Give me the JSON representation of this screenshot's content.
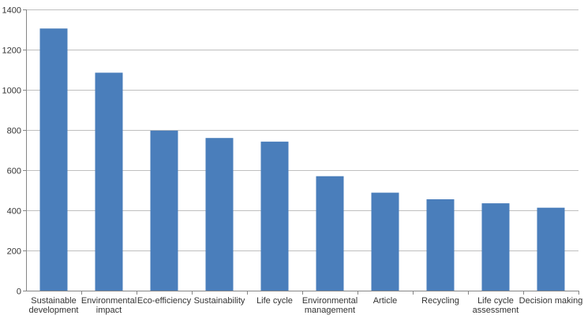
{
  "chart_data": {
    "type": "bar",
    "title": "",
    "xlabel": "",
    "ylabel": "",
    "ylim": [
      0,
      1400
    ],
    "yticks": [
      0,
      200,
      400,
      600,
      800,
      1000,
      1200,
      1400
    ],
    "grid": true,
    "legend": "none",
    "bar_color": "#4a7ebb",
    "grid_color": "#bfbfbf",
    "categories": [
      [
        "Sustainable",
        "development"
      ],
      [
        "Environmental",
        "impact"
      ],
      [
        "Eco-efficiency"
      ],
      [
        "Sustainability"
      ],
      [
        "Life cycle"
      ],
      [
        "Environmental",
        "management"
      ],
      [
        "Article"
      ],
      [
        "Recycling"
      ],
      [
        "Life cycle",
        "assessment"
      ],
      [
        "Decision making"
      ]
    ],
    "values": [
      1305,
      1085,
      797,
      760,
      742,
      570,
      488,
      455,
      435,
      413
    ]
  }
}
